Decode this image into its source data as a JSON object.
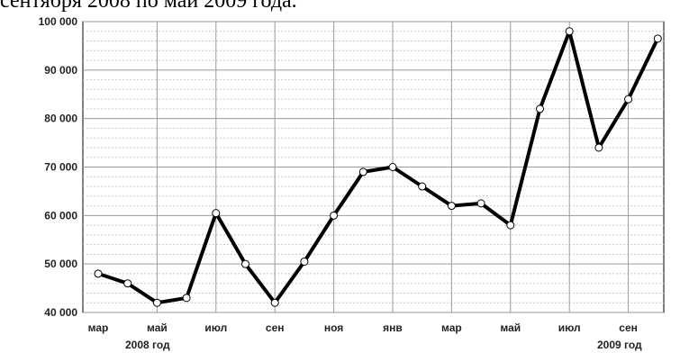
{
  "caption_fragment": "сентября 2008 по май 2009 года.",
  "chart_data": {
    "type": "line",
    "title": "",
    "xlabel": "",
    "ylabel": "",
    "ylim": [
      40000,
      100000
    ],
    "y_ticks": [
      "40 000",
      "50 000",
      "60 000",
      "70 000",
      "80 000",
      "90 000",
      "100 000"
    ],
    "y_tick_values": [
      40000,
      50000,
      60000,
      70000,
      80000,
      90000,
      100000
    ],
    "x_tick_labels": [
      "мар",
      "май",
      "июл",
      "сен",
      "ноя",
      "янв",
      "мар",
      "май",
      "июл",
      "сен"
    ],
    "year_labels": [
      "2008 год",
      "2009 год"
    ],
    "grid": true,
    "series": [
      {
        "values": [
          48000,
          46000,
          42000,
          43000,
          60500,
          50000,
          42000,
          50500,
          60000,
          69000,
          70000,
          66000,
          62000,
          62500,
          58000,
          82000,
          98000,
          74000,
          84000,
          96500
        ]
      }
    ],
    "line_color": "#000000",
    "marker_fill": "#ffffff"
  }
}
